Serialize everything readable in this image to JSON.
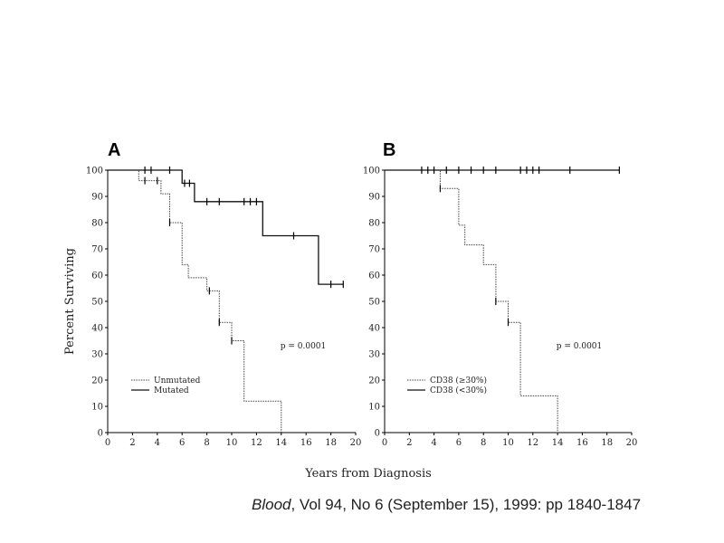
{
  "chart_data": [
    {
      "type": "line",
      "panel": "A",
      "xlabel": "Years from Diagnosis",
      "ylabel": "Percent Surviving",
      "xlim": [
        0,
        20
      ],
      "ylim": [
        0,
        100
      ],
      "xticks": [
        0,
        2,
        4,
        6,
        8,
        10,
        12,
        14,
        16,
        18,
        20
      ],
      "yticks": [
        0,
        10,
        20,
        30,
        40,
        50,
        60,
        70,
        80,
        90,
        100
      ],
      "annotation": "p = 0.0001",
      "series": [
        {
          "name": "Unmutated",
          "style": "dotted",
          "steps": [
            [
              0,
              100
            ],
            [
              2.5,
              100
            ],
            [
              2.5,
              96
            ],
            [
              4.3,
              96
            ],
            [
              4.3,
              91
            ],
            [
              5,
              91
            ],
            [
              5,
              80
            ],
            [
              6,
              80
            ],
            [
              6,
              64
            ],
            [
              6.5,
              64
            ],
            [
              6.5,
              59
            ],
            [
              8,
              59
            ],
            [
              8,
              54
            ],
            [
              9,
              54
            ],
            [
              9,
              42
            ],
            [
              10,
              42
            ],
            [
              10,
              35
            ],
            [
              11,
              35
            ],
            [
              11,
              12
            ],
            [
              14,
              12
            ],
            [
              14,
              0
            ]
          ],
          "censored": [
            [
              3,
              96
            ],
            [
              4,
              96
            ],
            [
              5,
              80
            ],
            [
              8.2,
              54
            ],
            [
              9,
              42
            ],
            [
              10,
              35
            ]
          ]
        },
        {
          "name": "Mutated",
          "style": "solid",
          "steps": [
            [
              0,
              100
            ],
            [
              6,
              100
            ],
            [
              6,
              95
            ],
            [
              7,
              95
            ],
            [
              7,
              88
            ],
            [
              12.5,
              88
            ],
            [
              12.5,
              75
            ],
            [
              17,
              75
            ],
            [
              17,
              56.5
            ],
            [
              19,
              56.5
            ]
          ],
          "censored": [
            [
              3,
              100
            ],
            [
              3.5,
              100
            ],
            [
              5,
              100
            ],
            [
              6.2,
              95
            ],
            [
              6.6,
              95
            ],
            [
              8,
              88
            ],
            [
              9,
              88
            ],
            [
              11,
              88
            ],
            [
              11.5,
              88
            ],
            [
              12,
              88
            ],
            [
              15,
              75
            ],
            [
              18,
              56.5
            ],
            [
              19,
              56.5
            ]
          ]
        }
      ]
    },
    {
      "type": "line",
      "panel": "B",
      "xlabel": "Years from Diagnosis",
      "ylabel": "",
      "xlim": [
        0,
        20
      ],
      "ylim": [
        0,
        100
      ],
      "xticks": [
        0,
        2,
        4,
        6,
        8,
        10,
        12,
        14,
        16,
        18,
        20
      ],
      "yticks": [
        0,
        10,
        20,
        30,
        40,
        50,
        60,
        70,
        80,
        90,
        100
      ],
      "annotation": "p = 0.0001",
      "series": [
        {
          "name": "CD38 (≥30%)",
          "style": "dotted",
          "steps": [
            [
              0,
              100
            ],
            [
              4.5,
              100
            ],
            [
              4.5,
              93
            ],
            [
              6,
              93
            ],
            [
              6,
              79
            ],
            [
              6.5,
              79
            ],
            [
              6.5,
              71.5
            ],
            [
              8,
              71.5
            ],
            [
              8,
              64
            ],
            [
              9,
              64
            ],
            [
              9,
              50
            ],
            [
              10,
              50
            ],
            [
              10,
              42
            ],
            [
              11,
              42
            ],
            [
              11,
              14
            ],
            [
              14,
              14
            ],
            [
              14,
              0
            ]
          ],
          "censored": [
            [
              4.5,
              93
            ],
            [
              9,
              50
            ],
            [
              10,
              42
            ]
          ]
        },
        {
          "name": "CD38 (<30%)",
          "style": "solid",
          "steps": [
            [
              0,
              100
            ],
            [
              19,
              100
            ]
          ],
          "censored": [
            [
              3,
              100
            ],
            [
              3.5,
              100
            ],
            [
              4,
              100
            ],
            [
              5,
              100
            ],
            [
              6,
              100
            ],
            [
              7,
              100
            ],
            [
              8,
              100
            ],
            [
              9,
              100
            ],
            [
              11,
              100
            ],
            [
              11.5,
              100
            ],
            [
              12,
              100
            ],
            [
              12.5,
              100
            ],
            [
              15,
              100
            ],
            [
              19,
              100
            ]
          ]
        }
      ]
    }
  ],
  "shared_xlabel": "Years from Diagnosis",
  "citation": {
    "journal": "Blood",
    "details": ", Vol 94, No 6 (September 15), 1999: pp 1840-1847"
  }
}
